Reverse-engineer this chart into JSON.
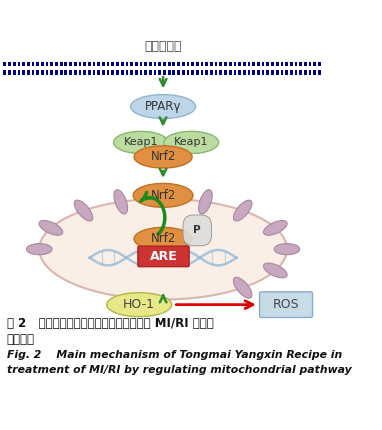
{
  "title_cn": "通脉养心方",
  "fig_caption_line1_cn": "图 2   通脉养心方通过调节线粒体途径治疗 MI/RI 的主要",
  "fig_caption_line2_cn": "作用机制",
  "fig_caption_line1_en": "Fig. 2    Main mechanism of Tongmai Yangxin Recipe in",
  "fig_caption_line2_en": "treatment of MI/RI by regulating mitochondrial pathway",
  "bg_color": "#ffffff",
  "dot_line_color": "#000080",
  "arrow_color": "#2e8b2e",
  "red_arrow_color": "#dd0000",
  "ppary_color_top": "#c5dded",
  "ppary_color_bot": "#a8c8e0",
  "ppary_text": "PPARγ",
  "keap1_color": "#b8e0a0",
  "keap1_text": "Keap1",
  "nrf2_complex_color": "#e09040",
  "nrf2_text": "Nrf2",
  "nucleus_fill": "#f8ece0",
  "nucleus_border": "#d8b0a0",
  "mito_color": "#c8a8c0",
  "mito_border": "#a888a0",
  "are_color": "#cc3333",
  "are_text": "ARE",
  "ho1_color_top": "#e8e8a0",
  "ho1_color_bot": "#d8d870",
  "ho1_text": "HO-1",
  "ros_color": "#c8dce8",
  "ros_text": "ROS",
  "p_label": "P",
  "dna_color": "#90b8d8",
  "green_curve_color": "#1a8a1a"
}
